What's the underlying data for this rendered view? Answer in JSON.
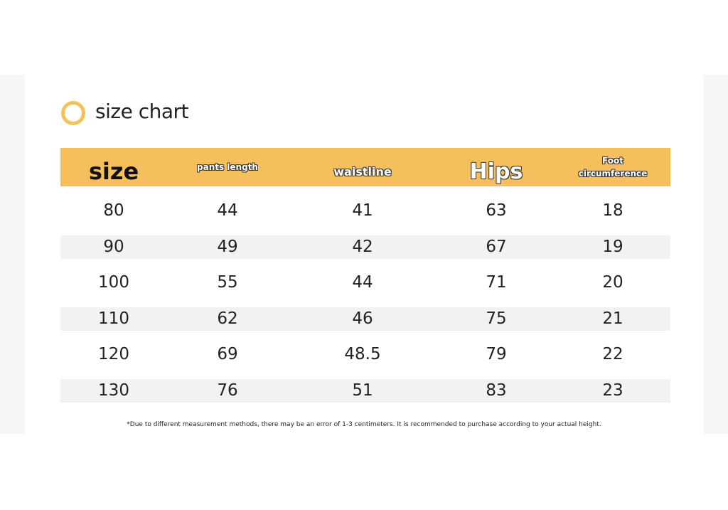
{
  "header": {
    "title": "size chart"
  },
  "table": {
    "columns": [
      "size",
      "pants length",
      "waistline",
      "Hips",
      "Foot circumference"
    ],
    "rows": [
      [
        80,
        44,
        41,
        63,
        18
      ],
      [
        90,
        49,
        42,
        67,
        19
      ],
      [
        100,
        55,
        44,
        71,
        20
      ],
      [
        110,
        62,
        46,
        75,
        21
      ],
      [
        120,
        69,
        48.5,
        79,
        22
      ],
      [
        130,
        76,
        51,
        83,
        23
      ]
    ]
  },
  "footnote": "*Due to different measurement methods, there may be an error of 1-3 centimeters. It is recommended to purchase according to your actual height."
}
